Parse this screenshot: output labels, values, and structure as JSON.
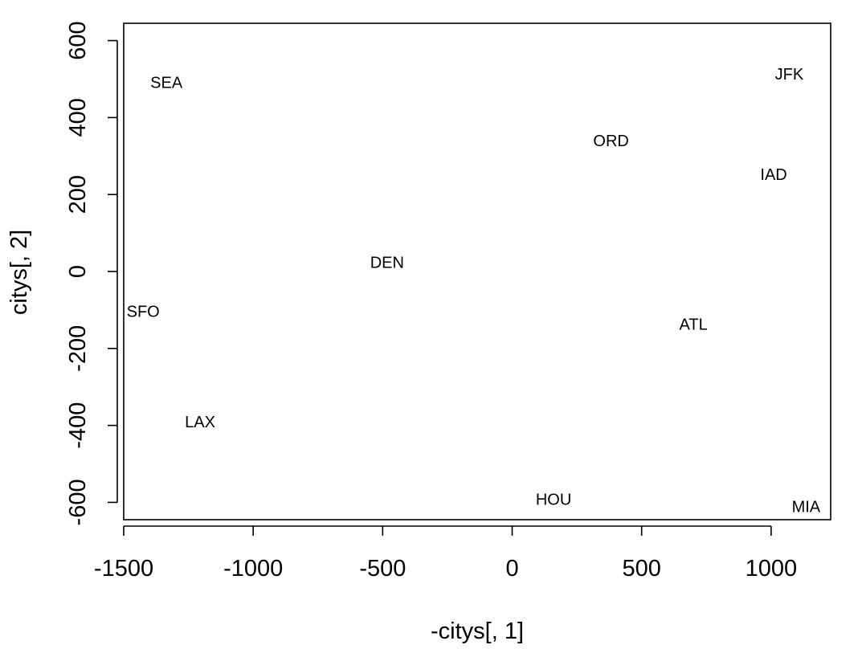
{
  "chart_data": {
    "type": "scatter",
    "title": "",
    "xlabel": "-citys[, 1]",
    "ylabel": "citys[, 2]",
    "xlim": [
      -1500,
      1230
    ],
    "ylim": [
      -645,
      645
    ],
    "xticks": [
      -1500,
      -1000,
      -500,
      0,
      500,
      1000
    ],
    "yticks": [
      -600,
      -400,
      -200,
      0,
      200,
      400,
      600
    ],
    "grid": false,
    "points": [
      {
        "label": "SEA",
        "x": -1335,
        "y": 492
      },
      {
        "label": "JFK",
        "x": 1070,
        "y": 513
      },
      {
        "label": "ORD",
        "x": 382,
        "y": 340
      },
      {
        "label": "IAD",
        "x": 1010,
        "y": 253
      },
      {
        "label": "DEN",
        "x": -483,
        "y": 24
      },
      {
        "label": "SFO",
        "x": -1425,
        "y": -103
      },
      {
        "label": "ATL",
        "x": 700,
        "y": -137
      },
      {
        "label": "LAX",
        "x": -1205,
        "y": -390
      },
      {
        "label": "HOU",
        "x": 160,
        "y": -592
      },
      {
        "label": "MIA",
        "x": 1135,
        "y": -611
      }
    ]
  }
}
